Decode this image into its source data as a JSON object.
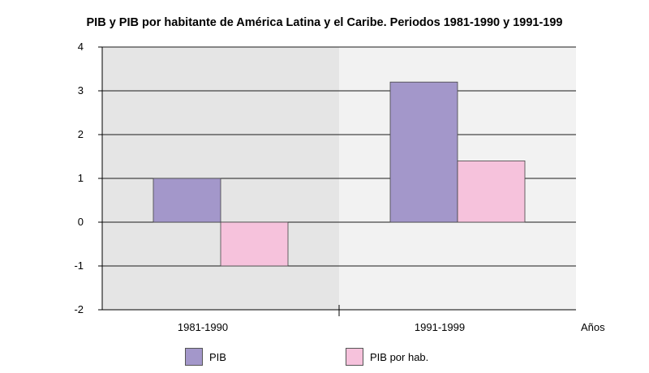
{
  "chart_data": {
    "type": "bar",
    "title": "PIB y PIB por habitante de América Latina y el Caribe. Periodos 1981-1990 y 1991-199",
    "xlabel": "Años",
    "ylabel": "",
    "categories": [
      "1981-1990",
      "1991-1999"
    ],
    "series": [
      {
        "name": "PIB",
        "values": [
          1.0,
          3.2
        ],
        "color": "#a397ca"
      },
      {
        "name": "PIB por hab.",
        "values": [
          -1.0,
          1.4
        ],
        "color": "#f6c2dc"
      }
    ],
    "ylim": [
      -2,
      4
    ],
    "yticks": [
      "4",
      "3",
      "2",
      "1",
      "0",
      "-1",
      "-2"
    ],
    "grid": true,
    "legend": "bottom",
    "band_colors": [
      "#e5e5e5",
      "#f2f2f2"
    ]
  }
}
